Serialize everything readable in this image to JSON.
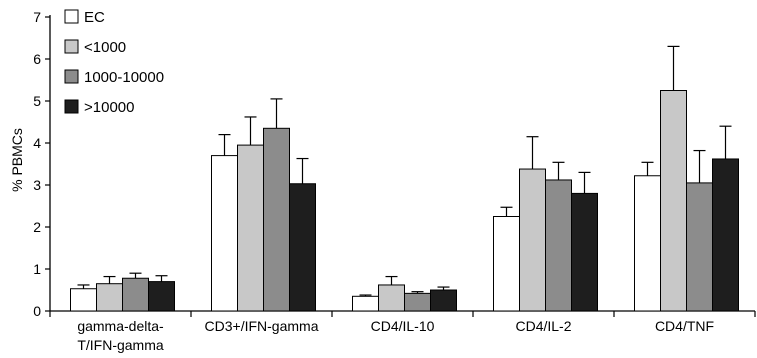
{
  "chart_data": {
    "type": "bar",
    "categories": [
      [
        "gamma-delta-",
        "T/IFN-gamma"
      ],
      [
        "CD3+/IFN-gamma"
      ],
      [
        "CD4/IL-10"
      ],
      [
        "CD4/IL-2"
      ],
      [
        "CD4/TNF"
      ]
    ],
    "series": [
      {
        "name": "EC",
        "color": "#ffffff",
        "values": [
          0.53,
          3.7,
          0.35,
          2.25,
          3.22
        ],
        "errors": [
          0.09,
          0.5,
          0.03,
          0.22,
          0.32
        ]
      },
      {
        "name": "<1000",
        "color": "#c8c8c8",
        "values": [
          0.65,
          3.95,
          0.62,
          3.38,
          5.25
        ],
        "errors": [
          0.17,
          0.67,
          0.2,
          0.77,
          1.05
        ]
      },
      {
        "name": "1000-10000",
        "color": "#8c8c8c",
        "values": [
          0.78,
          4.35,
          0.42,
          3.12,
          3.05
        ],
        "errors": [
          0.12,
          0.7,
          0.04,
          0.42,
          0.77
        ]
      },
      {
        "name": ">10000",
        "color": "#1e1e1e",
        "values": [
          0.7,
          3.03,
          0.5,
          2.8,
          3.62
        ],
        "errors": [
          0.14,
          0.6,
          0.07,
          0.5,
          0.78
        ]
      }
    ],
    "ylabel": "% PBMCs",
    "xlabel": "",
    "ylim": [
      0,
      7
    ],
    "yticks": [
      0,
      1,
      2,
      3,
      4,
      5,
      6,
      7
    ],
    "grid": false,
    "legend_position": "top-left"
  }
}
